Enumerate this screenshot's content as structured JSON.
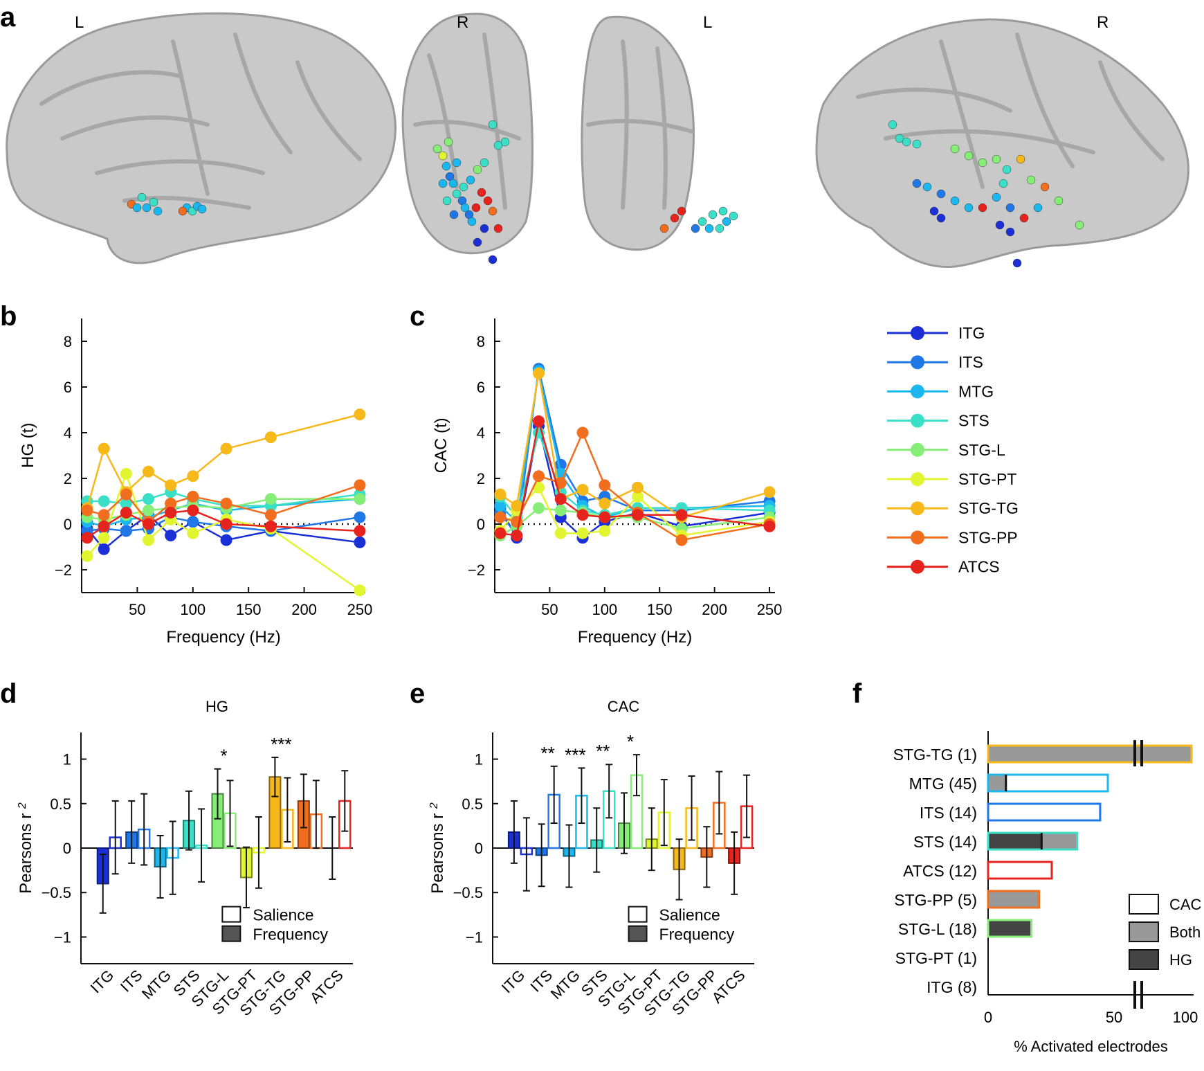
{
  "panel_a": {
    "label": "a",
    "hemisphere_labels": [
      "L",
      "R",
      "L",
      "R"
    ],
    "colors": {
      "ITG": "#1a2fd6",
      "ITS": "#1f77e8",
      "MTG": "#1ab8ee",
      "STS": "#39e0c7",
      "STG-L": "#86ee76",
      "STG-PT": "#e2f531",
      "STG-TG": "#f7b81a",
      "STG-PP": "#f06e1e",
      "ATCS": "#e6241d"
    }
  },
  "chart_data": [
    {
      "panel": "b",
      "type": "line",
      "xlabel": "Frequency (Hz)",
      "ylabel": "HG (t)",
      "xticks": [
        "50",
        "100",
        "150",
        "200",
        "250"
      ],
      "yticks": [
        "8",
        "6",
        "4",
        "2",
        "0",
        "−2"
      ],
      "ylim": [
        -3,
        9
      ],
      "zero_line": "dotted",
      "x": [
        5,
        20,
        40,
        60,
        80,
        100,
        130,
        170,
        250
      ],
      "series": [
        {
          "name": "ITG",
          "values": [
            -0.2,
            -1.1,
            -0.3,
            0.4,
            -0.5,
            0.1,
            -0.7,
            -0.3,
            -0.8
          ]
        },
        {
          "name": "ITS",
          "values": [
            -0.3,
            -0.2,
            -0.3,
            -0.2,
            0.3,
            0.1,
            -0.1,
            -0.3,
            0.3
          ]
        },
        {
          "name": "MTG",
          "values": [
            0.1,
            -0.1,
            0.2,
            0.3,
            0.6,
            0.9,
            0.6,
            0.8,
            1.1
          ]
        },
        {
          "name": "STS",
          "values": [
            1.0,
            1.0,
            0.9,
            1.1,
            1.4,
            1.1,
            0.8,
            0.8,
            1.3
          ]
        },
        {
          "name": "STG-L",
          "values": [
            0.3,
            0.2,
            0.4,
            0.6,
            0.7,
            0.8,
            0.7,
            1.1,
            1.1
          ]
        },
        {
          "name": "STG-PT",
          "values": [
            -1.4,
            -0.6,
            2.2,
            -0.7,
            0.2,
            -0.4,
            0.2,
            -0.2,
            -2.9
          ]
        },
        {
          "name": "STG-TG",
          "values": [
            0.7,
            3.3,
            1.4,
            2.3,
            1.7,
            2.1,
            3.3,
            3.8,
            4.8
          ]
        },
        {
          "name": "STG-PP",
          "values": [
            0.6,
            0.4,
            1.3,
            0.1,
            0.9,
            1.2,
            0.9,
            0.4,
            1.7
          ]
        },
        {
          "name": "ATCS",
          "values": [
            -0.6,
            -0.1,
            0.5,
            0.0,
            0.5,
            0.6,
            0.0,
            -0.1,
            -0.3
          ]
        }
      ]
    },
    {
      "panel": "c",
      "type": "line",
      "xlabel": "Frequency (Hz)",
      "ylabel": "CAC (t)",
      "xticks": [
        "50",
        "100",
        "150",
        "200",
        "250"
      ],
      "yticks": [
        "8",
        "6",
        "4",
        "2",
        "0",
        "−2"
      ],
      "ylim": [
        -3,
        9
      ],
      "zero_line": "dotted",
      "x": [
        5,
        20,
        40,
        60,
        80,
        100,
        130,
        170,
        250
      ],
      "series": [
        {
          "name": "ITG",
          "values": [
            0.7,
            -0.6,
            4.3,
            0.3,
            -0.6,
            0.1,
            0.5,
            -0.1,
            0.5
          ]
        },
        {
          "name": "ITS",
          "values": [
            0.5,
            -0.5,
            6.8,
            2.6,
            1.0,
            1.2,
            0.6,
            0.6,
            1.0
          ]
        },
        {
          "name": "MTG",
          "values": [
            0.8,
            0.1,
            6.7,
            2.2,
            0.8,
            0.3,
            0.7,
            0.7,
            0.8
          ]
        },
        {
          "name": "STS",
          "values": [
            1.2,
            0.3,
            4.0,
            1.4,
            0.6,
            0.4,
            0.7,
            0.7,
            0.6
          ]
        },
        {
          "name": "STG-L",
          "values": [
            -0.5,
            -0.1,
            0.7,
            0.6,
            0.5,
            0.3,
            0.3,
            -0.2,
            0.3
          ]
        },
        {
          "name": "STG-PT",
          "values": [
            -0.3,
            0.6,
            1.6,
            -0.4,
            -0.4,
            -0.3,
            1.2,
            -0.5,
            0.1
          ]
        },
        {
          "name": "STG-TG",
          "values": [
            1.3,
            0.8,
            6.6,
            1.1,
            1.5,
            0.9,
            1.6,
            0.3,
            1.4
          ]
        },
        {
          "name": "STG-PP",
          "values": [
            0.3,
            0.1,
            2.1,
            1.8,
            4.0,
            1.7,
            0.5,
            -0.7,
            0.0
          ]
        },
        {
          "name": "ATCS",
          "values": [
            -0.4,
            -0.5,
            4.5,
            1.1,
            0.4,
            0.3,
            0.4,
            0.4,
            -0.1
          ]
        }
      ]
    },
    {
      "panel": "d",
      "type": "bar",
      "title": "HG",
      "ylabel": "Pearsons r",
      "ylabel_sup": "2",
      "yticks": [
        "1",
        "0.5",
        "0",
        "−0.5",
        "−1"
      ],
      "ylim": [
        -1.3,
        1.3
      ],
      "categories": [
        "ITG",
        "ITS",
        "MTG",
        "STS",
        "STG-L",
        "STG-PT",
        "STG-TG",
        "STG-PP",
        "ATCS"
      ],
      "series": [
        {
          "name": "Frequency",
          "values": [
            -0.4,
            0.18,
            -0.21,
            0.31,
            0.61,
            -0.33,
            0.8,
            0.53,
            0.0
          ],
          "err": [
            0.33,
            0.35,
            0.35,
            0.33,
            0.28,
            0.34,
            0.22,
            0.3,
            0.35
          ]
        },
        {
          "name": "Salience",
          "values": [
            0.12,
            0.21,
            -0.11,
            0.03,
            0.39,
            -0.05,
            0.43,
            0.38,
            0.53
          ],
          "err": [
            0.41,
            0.4,
            0.41,
            0.41,
            0.37,
            0.4,
            0.36,
            0.38,
            0.34
          ]
        }
      ],
      "significance": [
        {
          "category": "STG-L",
          "label": "*"
        },
        {
          "category": "STG-TG",
          "label": "***"
        }
      ],
      "legend": [
        "Salience",
        "Frequency"
      ]
    },
    {
      "panel": "e",
      "type": "bar",
      "title": "CAC",
      "ylabel": "Pearsons r",
      "ylabel_sup": "2",
      "yticks": [
        "1",
        "0.5",
        "0",
        "−0.5",
        "−1"
      ],
      "ylim": [
        -1.3,
        1.3
      ],
      "categories": [
        "ITG",
        "ITS",
        "MTG",
        "STS",
        "STG-L",
        "STG-PT",
        "STG-TG",
        "STG-PP",
        "ATCS"
      ],
      "series": [
        {
          "name": "Frequency",
          "values": [
            0.18,
            -0.08,
            -0.09,
            0.09,
            0.28,
            0.1,
            -0.24,
            -0.1,
            -0.17
          ],
          "err": [
            0.35,
            0.35,
            0.35,
            0.36,
            0.34,
            0.35,
            0.34,
            0.34,
            0.35
          ]
        },
        {
          "name": "Salience",
          "values": [
            -0.07,
            0.6,
            0.59,
            0.64,
            0.82,
            0.4,
            0.45,
            0.51,
            0.47
          ],
          "err": [
            0.41,
            0.32,
            0.31,
            0.3,
            0.23,
            0.37,
            0.36,
            0.35,
            0.35
          ]
        }
      ],
      "significance": [
        {
          "category": "ITS",
          "label": "**"
        },
        {
          "category": "MTG",
          "label": "***"
        },
        {
          "category": "STS",
          "label": "**"
        },
        {
          "category": "STG-L",
          "label": "*"
        }
      ],
      "legend": [
        "Salience",
        "Frequency"
      ]
    },
    {
      "panel": "f",
      "type": "bar",
      "orientation": "horizontal",
      "xlabel": "% Activated electrodes",
      "xticks": [
        "0",
        "50",
        "100"
      ],
      "axis_break": true,
      "categories": [
        "STG-TG (1)",
        "MTG (45)",
        "ITS (14)",
        "STS (14)",
        "ATCS (12)",
        "STG-PP (5)",
        "STG-L (18)",
        "STG-PT (1)",
        "ITG (8)"
      ],
      "region_colors": [
        "#f7b81a",
        "#1ab8ee",
        "#1f77e8",
        "#39e0c7",
        "#e6241d",
        "#f06e1e",
        "#86ee76",
        "#e2f531",
        "#1a2fd6"
      ],
      "series": [
        {
          "name": "HG",
          "values": [
            0,
            0,
            0,
            21,
            0,
            0,
            17,
            0,
            0
          ]
        },
        {
          "name": "Both",
          "values": [
            100,
            7,
            0,
            14,
            0,
            20,
            0,
            0,
            0
          ]
        },
        {
          "name": "CAC",
          "values": [
            0,
            40,
            44,
            0,
            25,
            0,
            0,
            0,
            0
          ]
        }
      ],
      "legend": [
        "CAC",
        "Both",
        "HG"
      ]
    }
  ],
  "panel_labels": {
    "b": "b",
    "c": "c",
    "d": "d",
    "e": "e",
    "f": "f"
  },
  "legend_b_c": [
    "ITG",
    "ITS",
    "MTG",
    "STS",
    "STG-L",
    "STG-PT",
    "STG-TG",
    "STG-PP",
    "ATCS"
  ]
}
